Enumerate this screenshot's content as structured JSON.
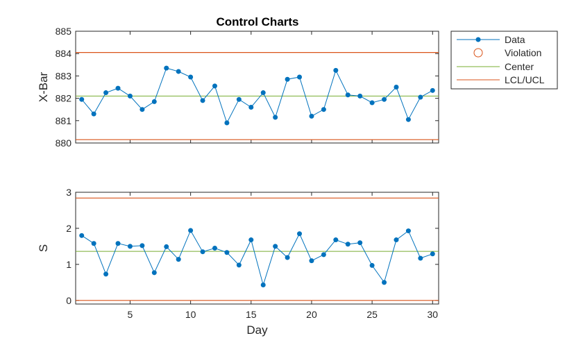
{
  "chart_data": {
    "type": "line",
    "title": "Control Charts",
    "colors": {
      "data": "#0072BD",
      "violation": "#D95319",
      "center": "#77AC30",
      "limits": "#D95319"
    },
    "legend": {
      "placement": "outside-top-right",
      "entries": [
        "Data",
        "Violation",
        "Center",
        "LCL/UCL"
      ]
    },
    "panels": [
      {
        "name": "xbar",
        "ylabel": "X-Bar",
        "xlabel": "",
        "xlim": [
          0.5,
          30.5
        ],
        "ylim": [
          880,
          885
        ],
        "yticks": [
          "880",
          "881",
          "882",
          "883",
          "884",
          "885"
        ],
        "xticks": [],
        "x": [
          1,
          2,
          3,
          4,
          5,
          6,
          7,
          8,
          9,
          10,
          11,
          12,
          13,
          14,
          15,
          16,
          17,
          18,
          19,
          20,
          21,
          22,
          23,
          24,
          25,
          26,
          27,
          28,
          29,
          30
        ],
        "values": [
          881.95,
          881.3,
          882.25,
          882.45,
          882.1,
          881.5,
          881.85,
          883.35,
          883.2,
          882.95,
          881.9,
          882.55,
          880.9,
          881.95,
          881.6,
          882.25,
          881.15,
          882.85,
          882.95,
          881.2,
          881.5,
          883.25,
          882.15,
          882.1,
          881.8,
          881.95,
          882.5,
          881.05,
          882.05,
          882.35
        ],
        "center": 882.1,
        "lcl": 880.15,
        "ucl": 884.05,
        "violations": []
      },
      {
        "name": "s",
        "ylabel": "S",
        "xlabel": "Day",
        "xlim": [
          0.5,
          30.5
        ],
        "ylim": [
          -0.1,
          3
        ],
        "yticks": [
          "0",
          "1",
          "2",
          "3"
        ],
        "xticks": [
          "5",
          "10",
          "15",
          "20",
          "25",
          "30"
        ],
        "x": [
          1,
          2,
          3,
          4,
          5,
          6,
          7,
          8,
          9,
          10,
          11,
          12,
          13,
          14,
          15,
          16,
          17,
          18,
          19,
          20,
          21,
          22,
          23,
          24,
          25,
          26,
          27,
          28,
          29,
          30
        ],
        "values": [
          1.8,
          1.58,
          0.73,
          1.58,
          1.5,
          1.52,
          0.77,
          1.49,
          1.14,
          1.94,
          1.35,
          1.45,
          1.33,
          0.98,
          1.68,
          0.43,
          1.5,
          1.19,
          1.85,
          1.1,
          1.27,
          1.68,
          1.56,
          1.6,
          0.97,
          0.5,
          1.68,
          1.93,
          1.17,
          1.29
        ],
        "center": 1.36,
        "lcl": 0,
        "ucl": 2.84,
        "violations": []
      }
    ]
  }
}
